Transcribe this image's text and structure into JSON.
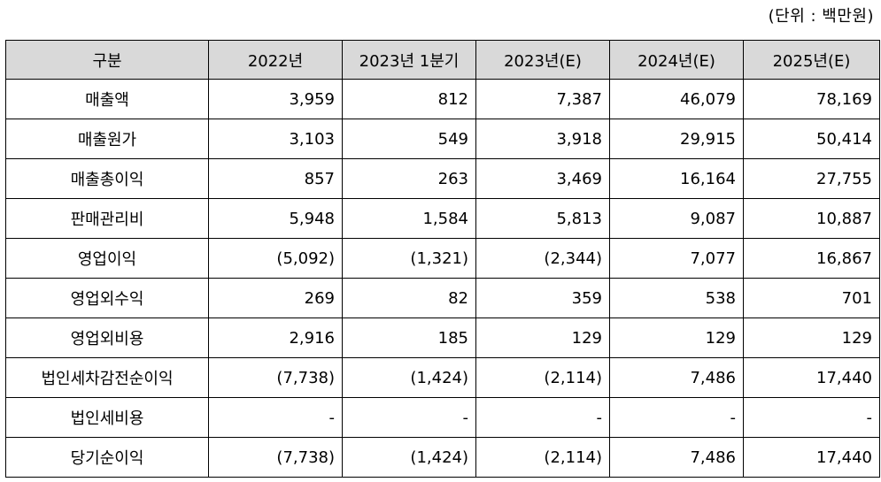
{
  "unit_label": "(단위 : 백만원)",
  "table": {
    "headers": [
      "구분",
      "2022년",
      "2023년 1분기",
      "2023년(E)",
      "2024년(E)",
      "2025년(E)"
    ],
    "rows": [
      [
        "매출액",
        "3,959",
        "812",
        "7,387",
        "46,079",
        "78,169"
      ],
      [
        "매출원가",
        "3,103",
        "549",
        "3,918",
        "29,915",
        "50,414"
      ],
      [
        "매출총이익",
        "857",
        "263",
        "3,469",
        "16,164",
        "27,755"
      ],
      [
        "판매관리비",
        "5,948",
        "1,584",
        "5,813",
        "9,087",
        "10,887"
      ],
      [
        "영업이익",
        "(5,092)",
        "(1,321)",
        "(2,344)",
        "7,077",
        "16,867"
      ],
      [
        "영업외수익",
        "269",
        "82",
        "359",
        "538",
        "701"
      ],
      [
        "영업외비용",
        "2,916",
        "185",
        "129",
        "129",
        "129"
      ],
      [
        "법인세차감전순이익",
        "(7,738)",
        "(1,424)",
        "(2,114)",
        "7,486",
        "17,440"
      ],
      [
        "법인세비용",
        "-",
        "-",
        "-",
        "-",
        "-"
      ],
      [
        "당기순이익",
        "(7,738)",
        "(1,424)",
        "(2,114)",
        "7,486",
        "17,440"
      ]
    ]
  },
  "colors": {
    "header_bg": "#d9d9d9",
    "border": "#000000"
  }
}
